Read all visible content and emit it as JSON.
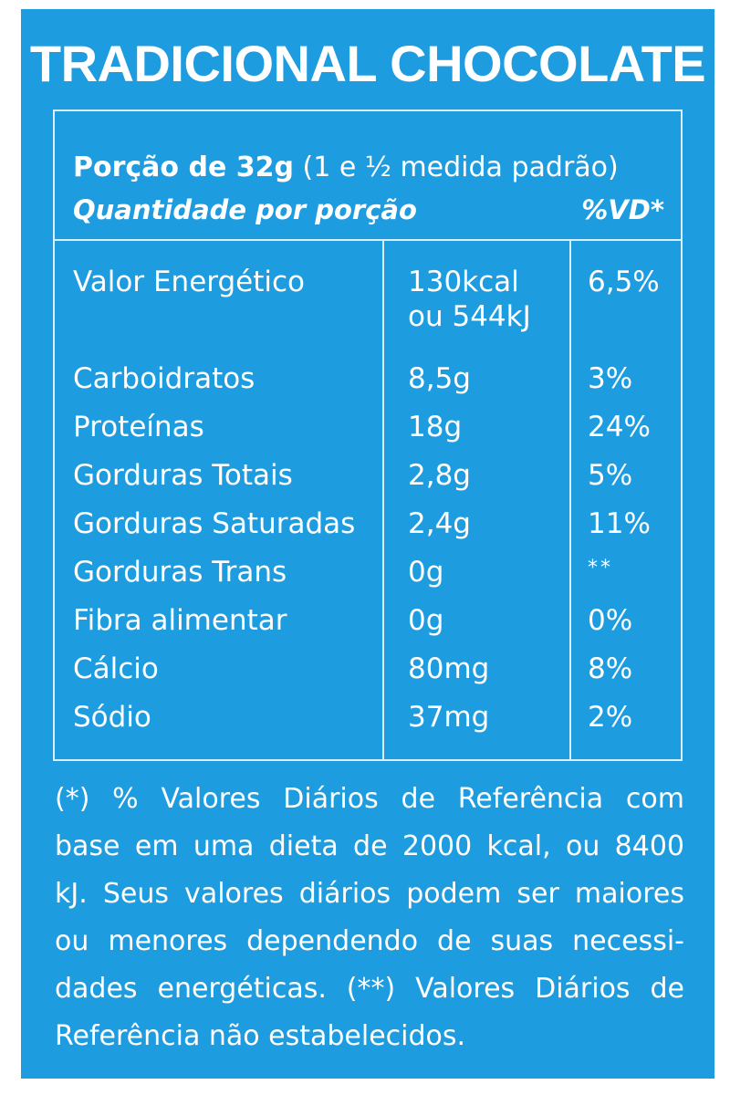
{
  "title": "TRADICIONAL CHOCOLATE",
  "header": {
    "serving_label": "Porção de 32g",
    "serving_note": "(1 e ½ medida padrão)",
    "quantity_label": "Quantidade por porção",
    "dv_label": "%VD*"
  },
  "rows": [
    {
      "name": "Valor Energético",
      "amount": "130kcal",
      "amount2": "ou 544kJ",
      "dv": "6,5%"
    },
    {
      "name": "Carboidratos",
      "amount": "8,5g",
      "dv": "3%"
    },
    {
      "name": "Proteínas",
      "amount": "18g",
      "dv": "24%"
    },
    {
      "name": "Gorduras Totais",
      "amount": "2,8g",
      "dv": "5%"
    },
    {
      "name": "Gorduras Saturadas",
      "amount": "2,4g",
      "dv": "11%"
    },
    {
      "name": "Gorduras Trans",
      "amount": "0g",
      "dv": "**"
    },
    {
      "name": "Fibra alimentar",
      "amount": "0g",
      "dv": "0%"
    },
    {
      "name": "Cálcio",
      "amount": "80mg",
      "dv": "8%"
    },
    {
      "name": "Sódio",
      "amount": "37mg",
      "dv": "2%"
    }
  ],
  "footnote": {
    "lines": [
      "(*) % Valores Diários de Referência com",
      "base em uma dieta de 2000 kcal, ou 8400",
      "kJ. Seus valores diários podem ser maiores",
      "ou menores dependendo de suas necessi-",
      "dades energéticas. (**) Valores Diários de",
      "Referência não estabelecidos."
    ]
  },
  "colors": {
    "background": "#1e9ce0",
    "text": "#ffffff",
    "rule": "#d7eefb"
  }
}
